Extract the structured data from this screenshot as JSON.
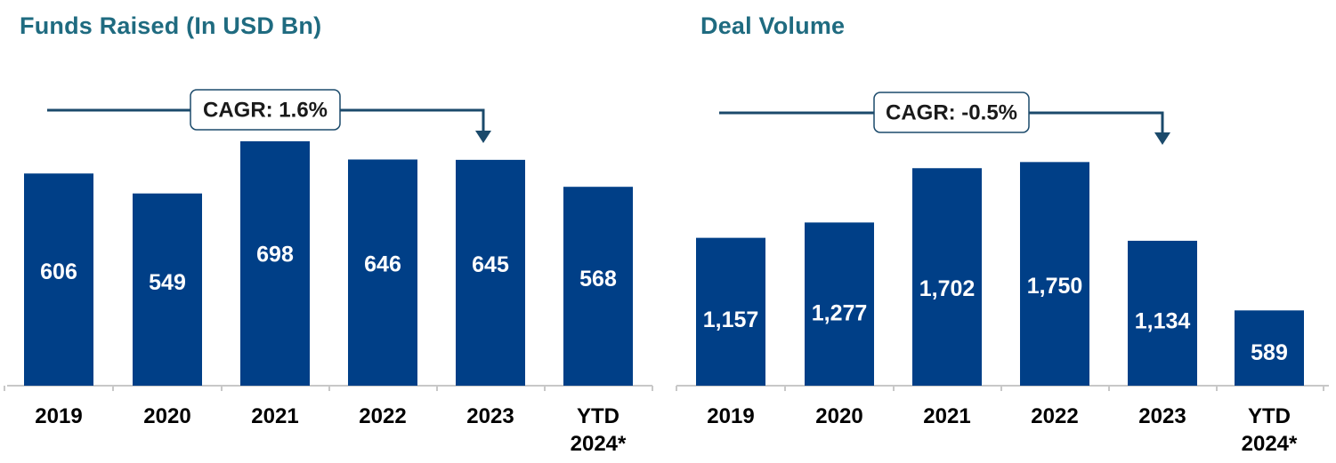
{
  "chart_data": [
    {
      "type": "bar",
      "title": "Funds Raised (In USD Bn)",
      "categories": [
        "2019",
        "2020",
        "2021",
        "2022",
        "2023",
        "YTD\n2024*"
      ],
      "values": [
        606,
        549,
        698,
        646,
        645,
        568
      ],
      "value_labels": [
        "606",
        "549",
        "698",
        "646",
        "645",
        "568"
      ],
      "annotation": "CAGR: 1.6%",
      "bar_color": "#003f87",
      "grid": false,
      "legend": "none"
    },
    {
      "type": "bar",
      "title": "Deal Volume",
      "categories": [
        "2019",
        "2020",
        "2021",
        "2022",
        "2023",
        "YTD\n2024*"
      ],
      "values": [
        1157,
        1277,
        1702,
        1750,
        1134,
        589
      ],
      "value_labels": [
        "1,157",
        "1,277",
        "1,702",
        "1,750",
        "1,134",
        "589"
      ],
      "annotation": "CAGR: -0.5%",
      "bar_color": "#003f87",
      "grid": false,
      "legend": "none"
    }
  ],
  "colors": {
    "title": "#1f6b80",
    "bar": "#003f87",
    "arrow": "#1b4a6b",
    "axis": "#c8c8c8"
  }
}
